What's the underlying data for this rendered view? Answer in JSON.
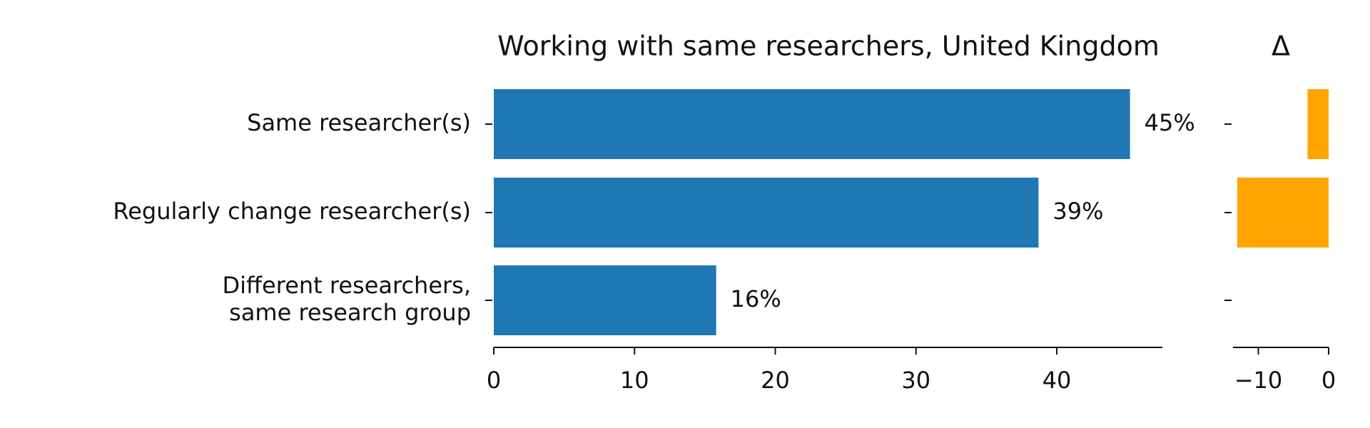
{
  "chart_data": [
    {
      "type": "barh",
      "title": "Working with same researchers, United Kingdom",
      "categories": [
        "Same researcher(s)",
        "Regularly change researcher(s)",
        "Different researchers,\nsame research group"
      ],
      "values": [
        45.2,
        38.7,
        15.8
      ],
      "value_labels": [
        "45%",
        "39%",
        "16%"
      ],
      "color": "#1f77b4",
      "xlim": [
        0,
        47.5
      ],
      "xticks": [
        0,
        10,
        20,
        30,
        40
      ]
    },
    {
      "type": "barh",
      "title": "Δ",
      "values": [
        -3,
        -13,
        0
      ],
      "color": "#ffa500",
      "xlim": [
        -13.6,
        0
      ],
      "xticks": [
        {
          "value": -10,
          "label": "−10"
        },
        0
      ]
    }
  ]
}
